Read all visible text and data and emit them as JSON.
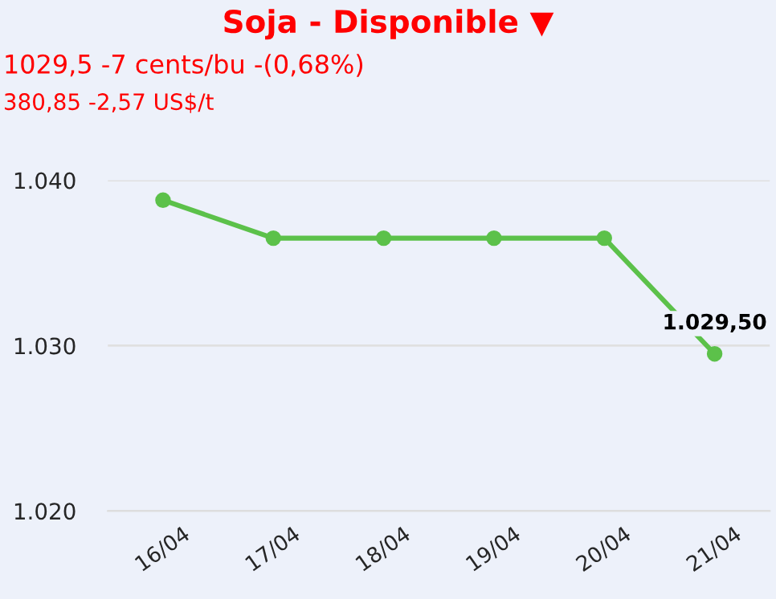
{
  "chart_data": {
    "type": "line",
    "title": "Soja - Disponible ▼",
    "subtitle": "1029,5 -7 cents/bu -(0,68%)",
    "annotations": [
      "380,85 -2,57 US$/t"
    ],
    "categories": [
      "16/04",
      "17/04",
      "18/04",
      "19/04",
      "20/04",
      "21/04"
    ],
    "series": [
      {
        "color": "#5cc14a",
        "values": [
          1038.8,
          1036.5,
          1036.5,
          1036.5,
          1036.5,
          1029.5
        ],
        "value_labels": [
          null,
          null,
          null,
          null,
          null,
          "1.029,50"
        ]
      }
    ],
    "ylim": [
      1020,
      1040
    ],
    "yticks": [
      {
        "value": 1020,
        "label": "1.020"
      },
      {
        "value": 1030,
        "label": "1.030"
      },
      {
        "value": 1040,
        "label": "1.040"
      }
    ],
    "grid": "y",
    "marker": "circle",
    "line_style": "solid",
    "legend": false
  }
}
